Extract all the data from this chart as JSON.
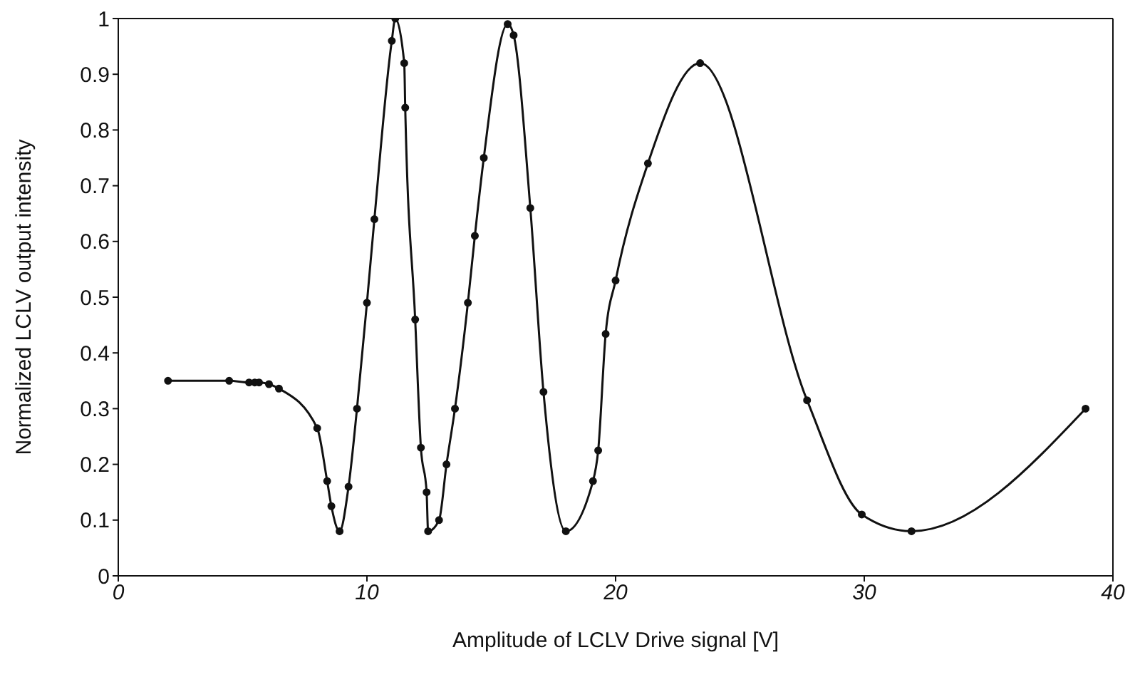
{
  "chart_data": {
    "type": "line",
    "xlabel": "Amplitude of LCLV Drive signal [V]",
    "ylabel": "Normalized LCLV output intensity",
    "xlim": [
      0,
      40
    ],
    "xticks": [
      0,
      10,
      20,
      30,
      40
    ],
    "ylim": [
      0,
      1
    ],
    "yticks": [
      0,
      0.1,
      0.2,
      0.3,
      0.4,
      0.5,
      0.6,
      0.7,
      0.8,
      0.9,
      1
    ],
    "legend": false,
    "marker": "circle",
    "line_style": "solid",
    "series": [
      {
        "color": "#111111",
        "x": [
          2.0,
          4.46,
          5.26,
          5.49,
          5.66,
          6.06,
          6.46,
          8.0,
          8.4,
          8.57,
          8.9,
          9.26,
          9.6,
          10.0,
          10.3,
          11.0,
          11.14,
          11.5,
          11.54,
          11.94,
          12.17,
          12.4,
          12.46,
          12.9,
          13.2,
          13.54,
          14.06,
          14.34,
          14.7,
          15.66,
          15.9,
          16.57,
          17.1,
          18.0,
          19.09,
          19.3,
          19.6,
          20.0,
          21.3,
          23.4,
          27.7,
          29.9,
          31.9,
          38.9
        ],
        "values": [
          0.35,
          0.35,
          0.347,
          0.347,
          0.347,
          0.344,
          0.336,
          0.265,
          0.17,
          0.125,
          0.08,
          0.16,
          0.3,
          0.49,
          0.64,
          0.96,
          1.0,
          0.92,
          0.84,
          0.46,
          0.23,
          0.15,
          0.08,
          0.1,
          0.2,
          0.3,
          0.49,
          0.61,
          0.75,
          0.99,
          0.97,
          0.66,
          0.33,
          0.08,
          0.17,
          0.225,
          0.434,
          0.53,
          0.74,
          0.92,
          0.315,
          0.11,
          0.08,
          0.3
        ]
      }
    ]
  }
}
